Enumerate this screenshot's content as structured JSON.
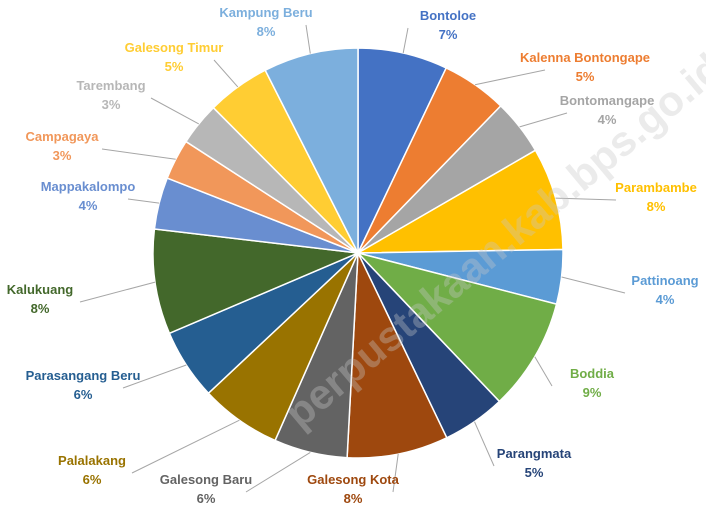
{
  "chart_data": {
    "type": "pie",
    "start_angle_deg": 0,
    "direction": "clockwise",
    "slices": [
      {
        "name": "Bontoloe",
        "label": "7%",
        "value": 7.1,
        "color": "#4472C4"
      },
      {
        "name": "Kalenna Bontongape",
        "label": "5%",
        "value": 5.2,
        "color": "#ED7D31"
      },
      {
        "name": "Bontomangape",
        "label": "4%",
        "value": 4.4,
        "color": "#A5A5A5"
      },
      {
        "name": "Parambambe",
        "label": "8%",
        "value": 8.1,
        "color": "#FFC000"
      },
      {
        "name": "Pattinoang",
        "label": "4%",
        "value": 4.3,
        "color": "#5B9BD5"
      },
      {
        "name": "Boddia",
        "label": "9%",
        "value": 8.9,
        "color": "#70AD47"
      },
      {
        "name": "Parangmata",
        "label": "5%",
        "value": 5.0,
        "color": "#264478"
      },
      {
        "name": "Galesong Kota",
        "label": "8%",
        "value": 8.0,
        "color": "#9E480E"
      },
      {
        "name": "Galesong Baru",
        "label": "6%",
        "value": 5.8,
        "color": "#636363"
      },
      {
        "name": "Palalakang",
        "label": "6%",
        "value": 6.4,
        "color": "#997300"
      },
      {
        "name": "Parasangang Beru",
        "label": "6%",
        "value": 5.6,
        "color": "#255E91"
      },
      {
        "name": "Kalukuang",
        "label": "8%",
        "value": 8.3,
        "color": "#43682B"
      },
      {
        "name": "Mappakalompo",
        "label": "4%",
        "value": 4.1,
        "color": "#698ED0"
      },
      {
        "name": "Campagaya",
        "label": "3%",
        "value": 3.2,
        "color": "#F1975A"
      },
      {
        "name": "Tarembang",
        "label": "3%",
        "value": 3.4,
        "color": "#B7B7B7"
      },
      {
        "name": "Galesong Timur",
        "label": "5%",
        "value": 5.0,
        "color": "#FFCD33"
      },
      {
        "name": "Kampung Beru",
        "label": "8%",
        "value": 7.5,
        "color": "#7CAFDD"
      }
    ]
  },
  "watermark": "perpustakaan.kab.bps.go.id"
}
